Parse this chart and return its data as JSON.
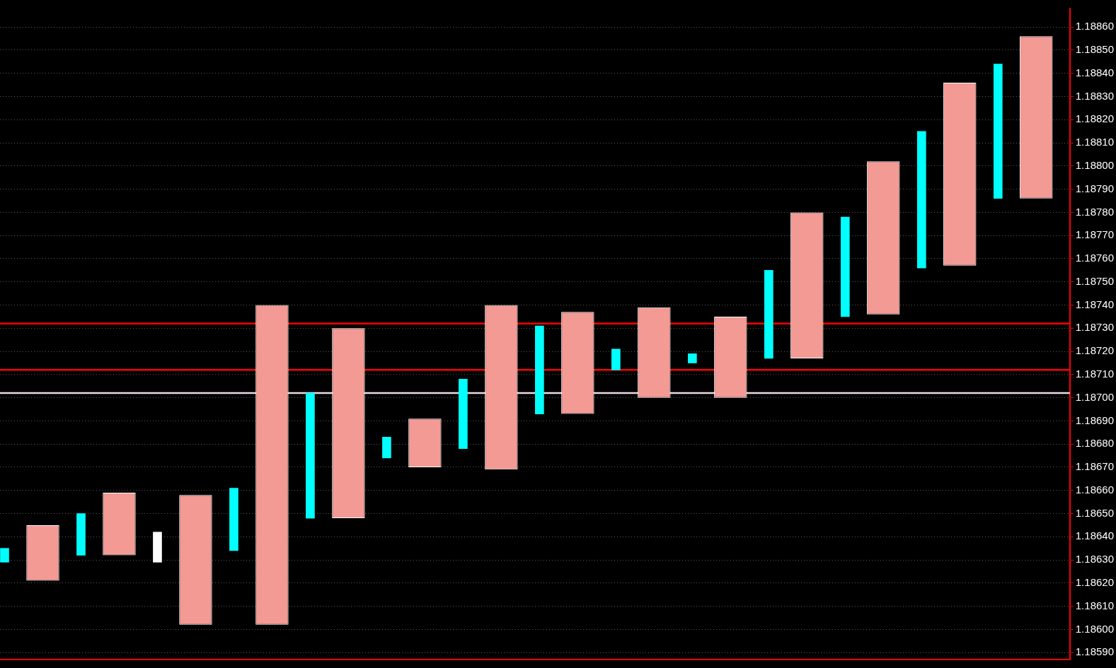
{
  "chart_data": {
    "type": "bar",
    "categories": [
      null,
      null,
      null,
      null,
      null,
      null,
      null,
      null,
      null,
      null,
      null,
      null,
      null,
      null
    ],
    "series": [
      {
        "type": "bar",
        "colors": [
          "#00ffff",
          "#00ffff",
          "#ffffff",
          "#00ffff",
          "#00ffff",
          "#00ffff",
          "#00ffff",
          "#00ffff",
          "#00ffff",
          "#00ffff",
          "#00ffff",
          "#00ffff",
          "#00ffff",
          "#00ffff"
        ],
        "base": [
          1.18629,
          1.18632,
          1.18629,
          1.18634,
          1.18648,
          1.18674,
          1.18678,
          1.18693,
          1.18712,
          1.18715,
          1.18717,
          1.18735,
          1.18756,
          1.18786
        ],
        "values": [
          6e-05,
          0.00018,
          0.00013,
          0.00027,
          0.00054,
          9e-05,
          0.0003,
          0.00038,
          9e-05,
          4e-05,
          0.00038,
          0.00043,
          0.00059,
          0.00058
        ]
      },
      {
        "type": "bar",
        "color": "#f49a94",
        "base": [
          1.18621,
          1.18632,
          1.18602,
          1.18602,
          1.18648,
          1.1867,
          1.18669,
          1.18693,
          1.187,
          1.187,
          1.18717,
          1.18736,
          1.18757,
          1.18786
        ],
        "values": [
          0.00024,
          0.00027,
          0.00056,
          0.00138,
          0.00082,
          0.00021,
          0.00071,
          0.00044,
          0.00039,
          0.00035,
          0.00063,
          0.00066,
          0.00079,
          0.0007
        ]
      }
    ],
    "ylim": [
      1.18587,
      1.18868
    ],
    "yticks": [
      {
        "value": 1.1859,
        "label": "1.18590"
      },
      {
        "value": 1.186,
        "label": "1.18600"
      },
      {
        "value": 1.1861,
        "label": "1.18610"
      },
      {
        "value": 1.1862,
        "label": "1.18620"
      },
      {
        "value": 1.1863,
        "label": "1.18630"
      },
      {
        "value": 1.1864,
        "label": "1.18640"
      },
      {
        "value": 1.1865,
        "label": "1.18650"
      },
      {
        "value": 1.1866,
        "label": "1.18660"
      },
      {
        "value": 1.1867,
        "label": "1.18670"
      },
      {
        "value": 1.1868,
        "label": "1.18680"
      },
      {
        "value": 1.1869,
        "label": "1.18690"
      },
      {
        "value": 1.187,
        "label": "1.18700"
      },
      {
        "value": 1.1871,
        "label": "1.18710"
      },
      {
        "value": 1.1872,
        "label": "1.18720"
      },
      {
        "value": 1.1873,
        "label": "1.18730"
      },
      {
        "value": 1.1874,
        "label": "1.18740"
      },
      {
        "value": 1.1875,
        "label": "1.18750"
      },
      {
        "value": 1.1876,
        "label": "1.18760"
      },
      {
        "value": 1.1877,
        "label": "1.18770"
      },
      {
        "value": 1.1878,
        "label": "1.18780"
      },
      {
        "value": 1.1879,
        "label": "1.18790"
      },
      {
        "value": 1.188,
        "label": "1.18800"
      },
      {
        "value": 1.1881,
        "label": "1.18810"
      },
      {
        "value": 1.1882,
        "label": "1.18820"
      },
      {
        "value": 1.1883,
        "label": "1.18830"
      },
      {
        "value": 1.1884,
        "label": "1.18840"
      },
      {
        "value": 1.1885,
        "label": "1.18850"
      },
      {
        "value": 1.1886,
        "label": "1.18860"
      }
    ],
    "ref_lines": [
      {
        "axis": "y",
        "value": 1.18732,
        "color": "#ff0000",
        "line_style": "solid"
      },
      {
        "axis": "y",
        "value": 1.18712,
        "color": "#ff0000",
        "line_style": "solid"
      },
      {
        "axis": "y",
        "value": 1.18702,
        "color": "#f0d8e8",
        "line_style": "solid"
      }
    ],
    "grid": "y",
    "legend": false
  }
}
